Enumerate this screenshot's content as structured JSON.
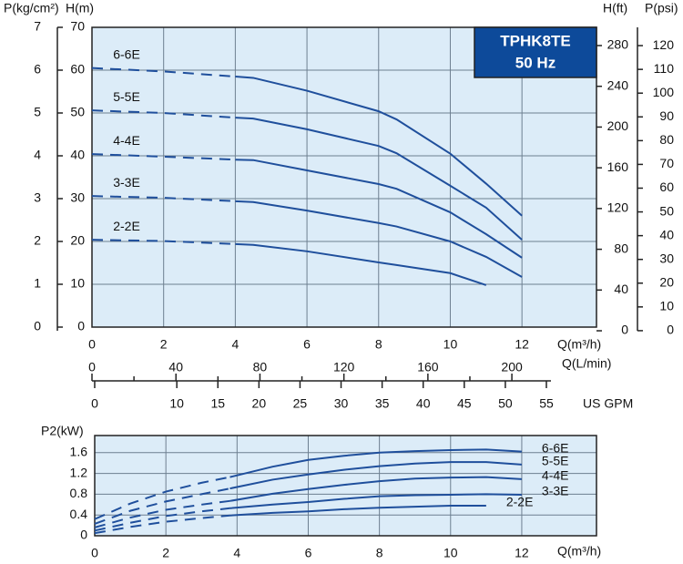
{
  "chart_data": [
    {
      "type": "line",
      "title": "TPHK8TE",
      "subtitle": "50 Hz",
      "xlabel": "Q(m³/h)",
      "ylabel": "H(m)",
      "x": [
        0,
        2,
        4,
        4.5,
        6,
        8,
        8.5,
        10,
        11,
        12
      ],
      "xlim": [
        0,
        14.08
      ],
      "xticks": [
        0,
        2,
        4,
        6,
        8,
        10,
        12
      ],
      "ylim": [
        0,
        70
      ],
      "yticks": [
        0,
        10,
        20,
        30,
        40,
        50,
        60,
        70
      ],
      "grid": true,
      "dashed_range": [
        0,
        4
      ],
      "color": "#1f4f9c",
      "series": [
        {
          "name": "6-6E",
          "values": [
            60.5,
            59.7,
            58.5,
            58.2,
            55.2,
            50.4,
            48.5,
            40.5,
            33.5,
            26
          ]
        },
        {
          "name": "5-5E",
          "values": [
            50.6,
            50.0,
            48.9,
            48.7,
            46.2,
            42.3,
            40.6,
            33,
            27.9,
            20.4
          ]
        },
        {
          "name": "4-4E",
          "values": [
            40.4,
            39.8,
            39.1,
            39,
            36.6,
            33.4,
            32.3,
            26.8,
            21.7,
            16.2
          ]
        },
        {
          "name": "3-3E",
          "values": [
            30.6,
            30.2,
            29.4,
            29.2,
            27.2,
            24.3,
            23.5,
            20,
            16.4,
            11.7
          ]
        },
        {
          "name": "2-2E",
          "values": [
            20.4,
            20.1,
            19.4,
            19.2,
            17.7,
            15.1,
            14.5,
            12.6,
            9.8,
            null
          ]
        }
      ],
      "extra_axes": [
        {
          "label": "P(kg/cm²)",
          "lim": [
            0,
            7
          ],
          "ticks": [
            0,
            1,
            2,
            3,
            4,
            5,
            6,
            7
          ]
        },
        {
          "label": "H(ft)",
          "lim": [
            3.6,
            297.9
          ],
          "ticks": [
            0,
            40,
            80,
            120,
            160,
            200,
            240,
            280
          ]
        },
        {
          "label": "P(psi)",
          "lim": [
            1.5,
            127.7
          ],
          "ticks": [
            0,
            10,
            20,
            30,
            40,
            50,
            60,
            70,
            80,
            90,
            100,
            110,
            120
          ]
        },
        {
          "label": "Q(L/min)",
          "lim": [
            0,
            240.3
          ],
          "ticks": [
            0,
            40,
            80,
            120,
            160,
            200
          ],
          "minor_ticks": [
            20,
            60,
            100,
            140,
            180
          ]
        },
        {
          "label": "US GPM",
          "lim": [
            -0.33,
            61.1
          ],
          "ticks": [
            0,
            10,
            15,
            20,
            25,
            30,
            35,
            40,
            45,
            50,
            55
          ]
        }
      ]
    },
    {
      "type": "line",
      "xlabel": "Q(m³/h)",
      "ylabel": "P2(kW)",
      "x": [
        0,
        1,
        2,
        3,
        3.8,
        5,
        6,
        7,
        8,
        9,
        10,
        11,
        12
      ],
      "xlim": [
        0,
        14.1
      ],
      "xticks": [
        0,
        2,
        4,
        6,
        8,
        10,
        12
      ],
      "ylim": [
        0,
        1.93
      ],
      "yticks": [
        0,
        0.4,
        0.8,
        1.2,
        1.6
      ],
      "grid": true,
      "dashed_range": [
        0,
        3.8
      ],
      "color": "#1f4f9c",
      "series": [
        {
          "name": "6-6E",
          "values": [
            0.32,
            0.62,
            0.85,
            1.02,
            1.13,
            1.33,
            1.46,
            1.54,
            1.6,
            1.63,
            1.65,
            1.66,
            1.62
          ]
        },
        {
          "name": "5-5E",
          "values": [
            0.23,
            0.48,
            0.66,
            0.8,
            0.91,
            1.08,
            1.18,
            1.27,
            1.34,
            1.39,
            1.42,
            1.42,
            1.37
          ]
        },
        {
          "name": "4-4E",
          "values": [
            0.16,
            0.35,
            0.5,
            0.6,
            0.67,
            0.81,
            0.9,
            0.98,
            1.05,
            1.1,
            1.12,
            1.13,
            1.09
          ]
        },
        {
          "name": "3-3E",
          "values": [
            0.1,
            0.25,
            0.38,
            0.47,
            0.53,
            0.6,
            0.65,
            0.71,
            0.76,
            0.78,
            0.79,
            0.8,
            0.79
          ]
        },
        {
          "name": "2-2E",
          "values": [
            0.05,
            0.17,
            0.27,
            0.34,
            0.39,
            0.44,
            0.47,
            0.51,
            0.54,
            0.56,
            0.58,
            0.58,
            null
          ]
        }
      ]
    }
  ]
}
